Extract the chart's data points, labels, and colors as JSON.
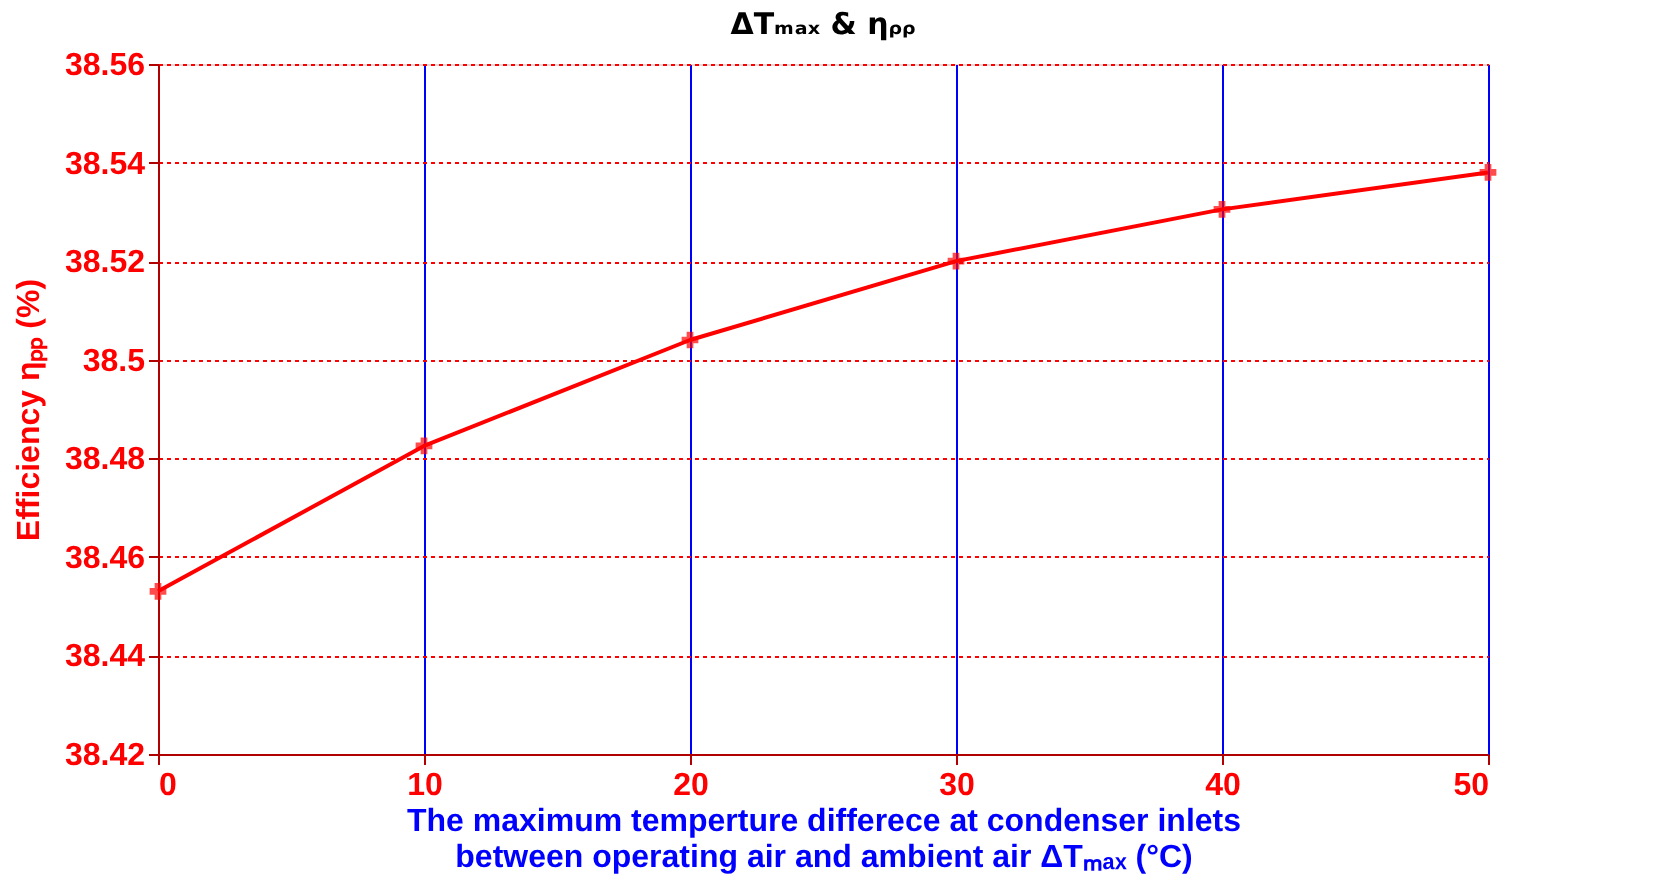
{
  "chart_data": {
    "type": "line",
    "title": "ΔTₘₐₓ & ηᵨᵨ",
    "xlabel": "The maximum temperture differece at condenser inlets between operating air and ambient air ΔTₘₐₓ (°C)",
    "ylabel": "Efficiency ηₚₚ (%)",
    "x": [
      0,
      10,
      20,
      30,
      40,
      50
    ],
    "series": [
      {
        "color": "#ff0000",
        "values": [
          38.453,
          38.4825,
          38.504,
          38.52,
          38.5305,
          38.538
        ]
      }
    ],
    "xlim": [
      0,
      50
    ],
    "xticks": [
      0,
      10,
      20,
      30,
      40,
      50
    ],
    "ylim": [
      38.42,
      38.56
    ],
    "yticks": [
      38.42,
      38.44,
      38.46,
      38.48,
      38.5,
      38.52,
      38.54,
      38.56
    ],
    "grid": true,
    "marker": "cross",
    "line_style": "solid"
  }
}
